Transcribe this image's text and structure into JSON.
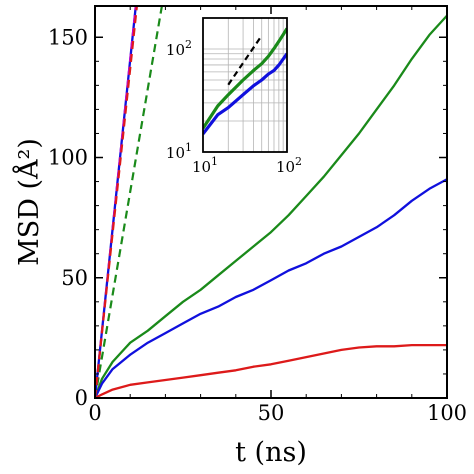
{
  "chart_data": [
    {
      "type": "line",
      "xlabel": "t (ns)",
      "ylabel": "MSD (Å²)",
      "xlim": [
        0,
        100
      ],
      "ylim": [
        0,
        163
      ],
      "x_ticks": [
        0,
        50,
        100
      ],
      "y_ticks": [
        0,
        50,
        100,
        150
      ],
      "x_tick_labels": [
        "0",
        "50",
        "100"
      ],
      "y_tick_labels": [
        "0",
        "50",
        "100",
        "150"
      ],
      "grid": false,
      "colors": {
        "green": "#1a8a1a",
        "blue": "#1010dd",
        "red": "#dd1a1a",
        "magenta_dash": "#cc00cc",
        "black_dash": "#000000"
      },
      "series": [
        {
          "color": "#1a8a1a",
          "style": "solid",
          "x": [
            0,
            2,
            5,
            10,
            15,
            20,
            25,
            30,
            35,
            40,
            45,
            50,
            55,
            60,
            65,
            70,
            75,
            80,
            85,
            90,
            95,
            100
          ],
          "y": [
            0,
            8,
            15,
            23,
            28,
            34,
            40,
            45,
            51,
            57,
            63,
            69,
            76,
            84,
            92,
            101,
            110,
            120,
            130,
            141,
            151,
            159
          ]
        },
        {
          "color": "#1010dd",
          "style": "solid",
          "x": [
            0,
            2,
            5,
            10,
            15,
            20,
            25,
            30,
            35,
            40,
            45,
            50,
            55,
            60,
            65,
            70,
            75,
            80,
            85,
            90,
            95,
            100
          ],
          "y": [
            0,
            6,
            12,
            18,
            23,
            27,
            31,
            35,
            38,
            42,
            45,
            49,
            53,
            56,
            60,
            63,
            67,
            71,
            76,
            82,
            87,
            91
          ]
        },
        {
          "color": "#dd1a1a",
          "style": "solid",
          "x": [
            0,
            2,
            5,
            10,
            15,
            20,
            25,
            30,
            35,
            40,
            45,
            50,
            55,
            60,
            65,
            70,
            75,
            80,
            85,
            90,
            95,
            100
          ],
          "y": [
            0,
            1.5,
            3.5,
            5.5,
            6.5,
            7.5,
            8.5,
            9.5,
            10.5,
            11.5,
            13,
            14,
            15.5,
            17,
            18.5,
            20,
            21,
            21.5,
            21.5,
            22,
            22,
            22
          ]
        },
        {
          "color": "#1a8a1a",
          "style": "dashed",
          "x": [
            0,
            19
          ],
          "y": [
            0,
            163
          ]
        },
        {
          "color": "#1010dd",
          "style": "solid",
          "x": [
            0,
            11.6
          ],
          "y": [
            0,
            163
          ]
        },
        {
          "color": "#cc00cc",
          "style": "dashed",
          "x": [
            0,
            11.6
          ],
          "y": [
            0,
            163
          ]
        },
        {
          "color": "#dd1a1a",
          "style": "dashed",
          "x": [
            0,
            11.9
          ],
          "y": [
            0,
            163
          ]
        }
      ]
    },
    {
      "type": "line",
      "scale": "log-log",
      "xlim": [
        10,
        100
      ],
      "ylim": [
        10,
        200
      ],
      "grid": true,
      "x_tick_labels": [
        "10^1",
        "10^2"
      ],
      "y_tick_labels": [
        "10^1",
        "10^2"
      ],
      "series": [
        {
          "color": "#1a8a1a",
          "style": "solid",
          "x": [
            10,
            15,
            20,
            30,
            40,
            50,
            60,
            70,
            80,
            90,
            100
          ],
          "y": [
            17,
            28,
            36,
            50,
            62,
            72,
            85,
            101,
            119,
            138,
            158
          ]
        },
        {
          "color": "#1010dd",
          "style": "solid",
          "x": [
            10,
            15,
            20,
            30,
            40,
            50,
            60,
            70,
            80,
            90,
            100
          ],
          "y": [
            15,
            23,
            27,
            36,
            44,
            50,
            57,
            62,
            70,
            80,
            90
          ]
        },
        {
          "color": "#000000",
          "style": "dashed",
          "x": [
            20,
            50
          ],
          "y": [
            45,
            135
          ]
        }
      ]
    }
  ]
}
